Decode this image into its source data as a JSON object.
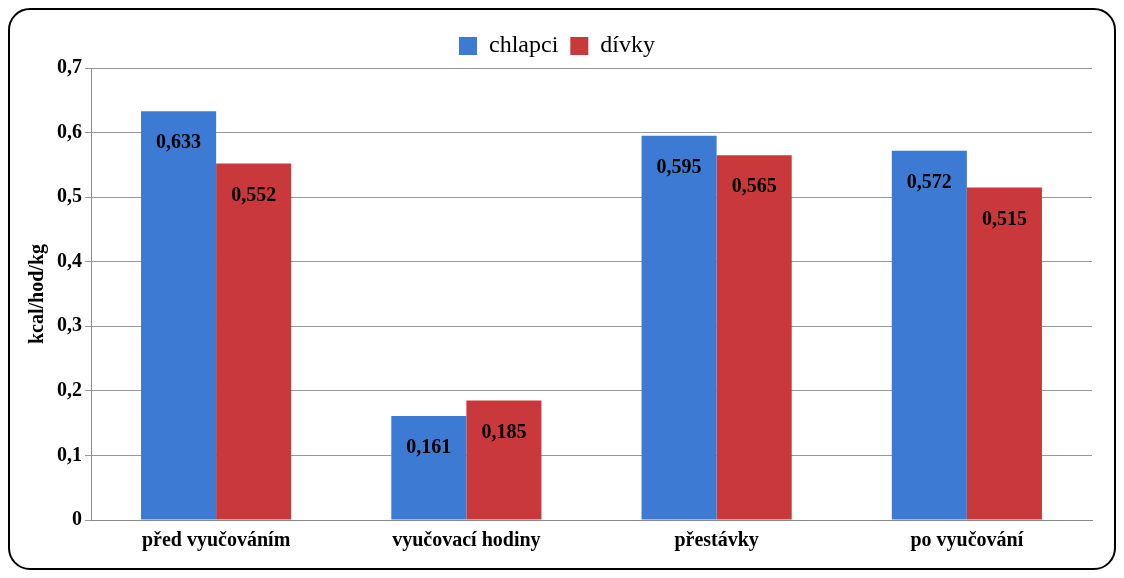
{
  "chart_data": {
    "type": "bar",
    "ylabel": "kcal/hod/kg",
    "categories": [
      "před vyučováním",
      "vyučovací hodiny",
      "přestávky",
      "po vyučování"
    ],
    "series": [
      {
        "name": "chlapci",
        "color": "#3d7ad3",
        "values": [
          0.633,
          0.161,
          0.595,
          0.572
        ],
        "value_labels": [
          "0,633",
          "0,161",
          "0,595",
          "0,572"
        ]
      },
      {
        "name": "dívky",
        "color": "#c9383a",
        "values": [
          0.552,
          0.185,
          0.565,
          0.515
        ],
        "value_labels": [
          "0,552",
          "0,185",
          "0,565",
          "0,515"
        ]
      }
    ],
    "ylim": [
      0,
      0.7
    ],
    "yticks": [
      0,
      {
        "value": 0.1,
        "label": "0,1"
      },
      {
        "value": 0.2,
        "label": "0,2"
      },
      {
        "value": 0.3,
        "label": "0,3"
      },
      {
        "value": 0.4,
        "label": "0,4"
      },
      {
        "value": 0.5,
        "label": "0,5"
      },
      {
        "value": 0.6,
        "label": "0,6"
      },
      {
        "value": 0.7,
        "label": "0,7"
      }
    ],
    "grid": "y",
    "legend": "top"
  }
}
